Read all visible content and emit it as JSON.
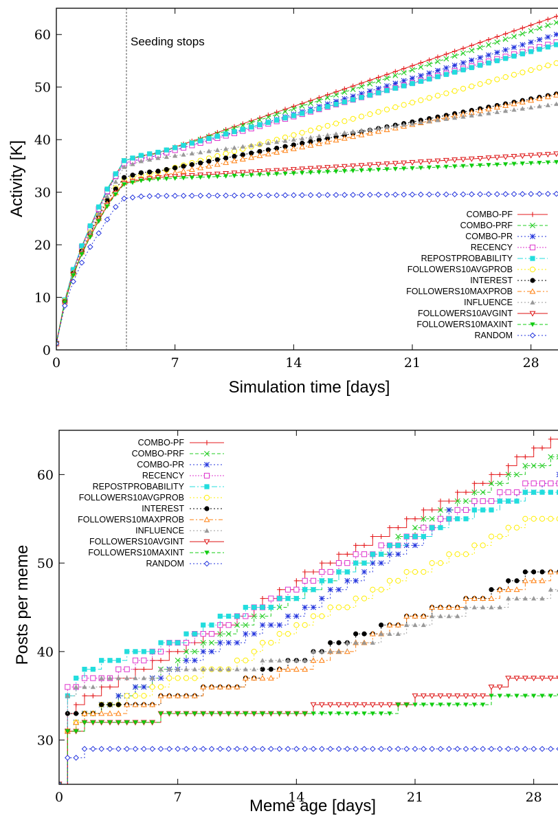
{
  "chart_data": [
    {
      "type": "line",
      "xlabel": "Simulation time [days]",
      "ylabel": "Activity [K]",
      "xlim": [
        0,
        30
      ],
      "ylim": [
        0,
        65
      ],
      "xticks": [
        "0",
        "7",
        "14",
        "21",
        "28"
      ],
      "yticks": [
        "0",
        "10",
        "20",
        "30",
        "40",
        "50",
        "60"
      ],
      "annotation": "Seeding stops",
      "annotation_x": 4.2,
      "legend_position": "bottom-right",
      "series": [
        {
          "name": "COMBO-PF",
          "color": "#e41a1c",
          "marker": "plus",
          "dash": "",
          "values": [
            1.2,
            9.5,
            15.2,
            19.7,
            23.5,
            27.0,
            30.4,
            33.3,
            36.0,
            36.9,
            37.5,
            64.0
          ]
        },
        {
          "name": "COMBO-PRF",
          "color": "#22cc22",
          "marker": "x",
          "dash": "5,3",
          "values": [
            1.2,
            9.5,
            15.2,
            19.7,
            23.5,
            27.0,
            30.4,
            33.3,
            36.0,
            36.8,
            37.4,
            62.8
          ]
        },
        {
          "name": "COMBO-PR",
          "color": "#2233dd",
          "marker": "star",
          "dash": "2,3",
          "values": [
            1.2,
            9.4,
            15.0,
            19.4,
            23.0,
            26.6,
            30.0,
            33.0,
            35.4,
            36.3,
            37.0,
            60.5
          ]
        },
        {
          "name": "RECENCY",
          "color": "#dd33cc",
          "marker": "square-open",
          "dash": "2,2",
          "values": [
            1.2,
            9.4,
            15.0,
            19.5,
            23.2,
            26.8,
            30.2,
            33.1,
            35.5,
            36.4,
            37.1,
            59.0
          ]
        },
        {
          "name": "REPOSTPROBABILITY",
          "color": "#22dddd",
          "marker": "square-filled",
          "dash": "8,3,2,3",
          "values": [
            1.2,
            9.5,
            15.3,
            19.8,
            23.6,
            27.2,
            30.6,
            33.5,
            36.0,
            37.0,
            37.6,
            58.5
          ]
        },
        {
          "name": "FOLLOWERS10AVGPROB",
          "color": "#ffee00",
          "marker": "circle-open",
          "dash": "2,3",
          "values": [
            1.2,
            9.3,
            14.6,
            18.8,
            22.4,
            25.6,
            28.6,
            30.8,
            32.5,
            33.3,
            33.8,
            55.0
          ]
        },
        {
          "name": "INTEREST",
          "color": "#000000",
          "marker": "circle-filled",
          "dash": "2,3",
          "values": [
            1.2,
            9.2,
            14.6,
            18.8,
            22.2,
            25.4,
            28.4,
            30.6,
            32.8,
            33.7,
            34.0,
            49.0
          ]
        },
        {
          "name": "FOLLOWERS10MAXPROB",
          "color": "#ff7f0e",
          "marker": "triangle-open",
          "dash": "6,3,2,3",
          "values": [
            1.2,
            9.1,
            14.5,
            18.6,
            22.0,
            25.0,
            27.8,
            29.9,
            31.8,
            32.6,
            33.0,
            48.8
          ]
        },
        {
          "name": "INFLUENCE",
          "color": "#999999",
          "marker": "triangle-filled",
          "dash": "2,3",
          "values": [
            1.2,
            9.2,
            14.6,
            18.8,
            22.5,
            25.9,
            29.2,
            32.0,
            34.8,
            35.9,
            36.5,
            47.0
          ]
        },
        {
          "name": "FOLLOWERS10AVGINT",
          "color": "#dd1111",
          "marker": "triangle-down-open",
          "dash": "",
          "values": [
            1.2,
            9.0,
            14.3,
            18.3,
            21.6,
            24.6,
            27.5,
            29.8,
            31.7,
            32.4,
            32.8,
            37.4
          ]
        },
        {
          "name": "FOLLOWERS10MAXINT",
          "color": "#11cc11",
          "marker": "triangle-down-filled",
          "dash": "5,3",
          "values": [
            1.2,
            9.0,
            14.2,
            18.2,
            21.5,
            24.5,
            27.3,
            29.6,
            31.5,
            32.2,
            32.5,
            35.8
          ]
        },
        {
          "name": "RANDOM",
          "color": "#2233dd",
          "marker": "diamond-open",
          "dash": "2,3",
          "values": [
            1.2,
            8.4,
            13.0,
            16.6,
            19.6,
            22.2,
            24.8,
            27.2,
            28.8,
            29.2,
            29.3,
            29.7
          ]
        }
      ],
      "x": [
        0,
        0.5,
        1,
        1.5,
        2,
        2.5,
        3,
        3.5,
        4,
        5,
        6,
        30
      ]
    },
    {
      "type": "line",
      "xlabel": "Meme age [days]",
      "ylabel": "Posts per meme",
      "xlim": [
        0,
        30
      ],
      "ylim": [
        25,
        65
      ],
      "xticks": [
        "0",
        "7",
        "14",
        "21",
        "28"
      ],
      "yticks": [
        "30",
        "40",
        "50",
        "60"
      ],
      "legend_position": "top-left",
      "series": [
        {
          "name": "COMBO-PF",
          "color": "#e41a1c",
          "marker": "plus",
          "dash": "",
          "x": [
            0,
            0.5,
            1,
            2,
            3,
            5,
            7,
            10,
            14,
            17,
            21,
            25,
            28,
            30
          ],
          "values": [
            25,
            33,
            34,
            35,
            36,
            38,
            40,
            43,
            48,
            51,
            55,
            59,
            63,
            64
          ]
        },
        {
          "name": "COMBO-PRF",
          "color": "#22cc22",
          "marker": "x",
          "dash": "5,3",
          "x": [
            0,
            0.5,
            1,
            2,
            3,
            5,
            7,
            10,
            14,
            18,
            21,
            25,
            28,
            30
          ],
          "values": [
            25,
            31,
            32,
            33,
            34,
            36,
            39,
            42,
            46,
            50,
            54,
            58,
            61,
            62
          ]
        },
        {
          "name": "COMBO-PR",
          "color": "#2233dd",
          "marker": "star",
          "dash": "2,3",
          "x": [
            0,
            0.5,
            1,
            2,
            3,
            5,
            7,
            10,
            14,
            18,
            21,
            23,
            28,
            30
          ],
          "values": [
            25,
            31,
            32,
            33,
            34,
            36,
            38,
            41,
            44,
            49,
            52,
            56,
            58,
            60
          ]
        },
        {
          "name": "RECENCY",
          "color": "#dd33cc",
          "marker": "square-open",
          "dash": "2,2",
          "x": [
            0,
            0.5,
            1,
            2,
            3,
            5,
            7,
            10,
            14,
            18,
            21,
            25,
            28,
            30
          ],
          "values": [
            25,
            36,
            36,
            37,
            37,
            39,
            41,
            43,
            47,
            51,
            53,
            57,
            59,
            59
          ]
        },
        {
          "name": "REPOSTPROBABILITY",
          "color": "#22dddd",
          "marker": "square-filled",
          "dash": "8,3,2,3",
          "x": [
            0,
            0.5,
            1,
            2,
            3,
            5,
            7,
            10,
            14,
            18,
            21,
            25,
            28,
            30
          ],
          "values": [
            25,
            35,
            37,
            38,
            39,
            40,
            41,
            44,
            46,
            50,
            53,
            56,
            58,
            58
          ]
        },
        {
          "name": "FOLLOWERS10AVGPROB",
          "color": "#ffee00",
          "marker": "circle-open",
          "dash": "2,3",
          "x": [
            0,
            0.5,
            1,
            2,
            3,
            5,
            7,
            10,
            14,
            18,
            21,
            25,
            28,
            30
          ],
          "values": [
            25,
            31,
            32,
            33,
            34,
            35,
            37,
            38,
            43,
            46,
            49,
            52,
            55,
            55
          ]
        },
        {
          "name": "INTEREST",
          "color": "#000000",
          "marker": "circle-filled",
          "dash": "2,3",
          "x": [
            0,
            0.5,
            1,
            2,
            3,
            5,
            7,
            10,
            14,
            18,
            21,
            25,
            28,
            30
          ],
          "values": [
            25,
            33,
            33,
            33,
            34,
            34,
            35,
            36,
            39,
            42,
            44,
            46,
            49,
            49
          ]
        },
        {
          "name": "FOLLOWERS10MAXPROB",
          "color": "#ff7f0e",
          "marker": "triangle-open",
          "dash": "6,3,2,3",
          "x": [
            0,
            0.5,
            1,
            2,
            3,
            5,
            7,
            10,
            14,
            18,
            21,
            25,
            28,
            30
          ],
          "values": [
            25,
            31,
            32,
            33,
            33,
            34,
            35,
            36,
            38,
            41,
            44,
            46,
            48,
            49
          ]
        },
        {
          "name": "INFLUENCE",
          "color": "#999999",
          "marker": "triangle-filled",
          "dash": "2,3",
          "x": [
            0,
            0.5,
            1,
            2,
            3,
            5,
            7,
            10,
            14,
            18,
            21,
            25,
            28,
            30
          ],
          "values": [
            25,
            35,
            36,
            36,
            37,
            37,
            38,
            38,
            39,
            41,
            43,
            45,
            46,
            47
          ]
        },
        {
          "name": "FOLLOWERS10AVGINT",
          "color": "#dd1111",
          "marker": "triangle-down-open",
          "dash": "",
          "x": [
            0,
            0.5,
            1,
            2,
            3,
            5,
            7,
            10,
            14,
            16,
            20,
            22,
            25,
            27,
            30
          ],
          "values": [
            25,
            31,
            31,
            32,
            32,
            32,
            33,
            33,
            33,
            34,
            34,
            35,
            35,
            37,
            37
          ]
        },
        {
          "name": "FOLLOWERS10MAXINT",
          "color": "#11cc11",
          "marker": "triangle-down-filled",
          "dash": "5,3",
          "x": [
            0,
            0.5,
            1,
            2,
            3,
            5,
            7,
            10,
            14,
            18,
            22,
            25,
            26,
            30
          ],
          "values": [
            25,
            31,
            31,
            32,
            32,
            32,
            33,
            33,
            33,
            33,
            34,
            34,
            35,
            35
          ]
        },
        {
          "name": "RANDOM",
          "color": "#2233dd",
          "marker": "diamond-open",
          "dash": "2,3",
          "x": [
            0,
            0.5,
            1,
            1.5,
            7,
            14,
            21,
            28,
            30
          ],
          "values": [
            25,
            28,
            28,
            29,
            29,
            29,
            29,
            29,
            29
          ]
        }
      ]
    }
  ]
}
